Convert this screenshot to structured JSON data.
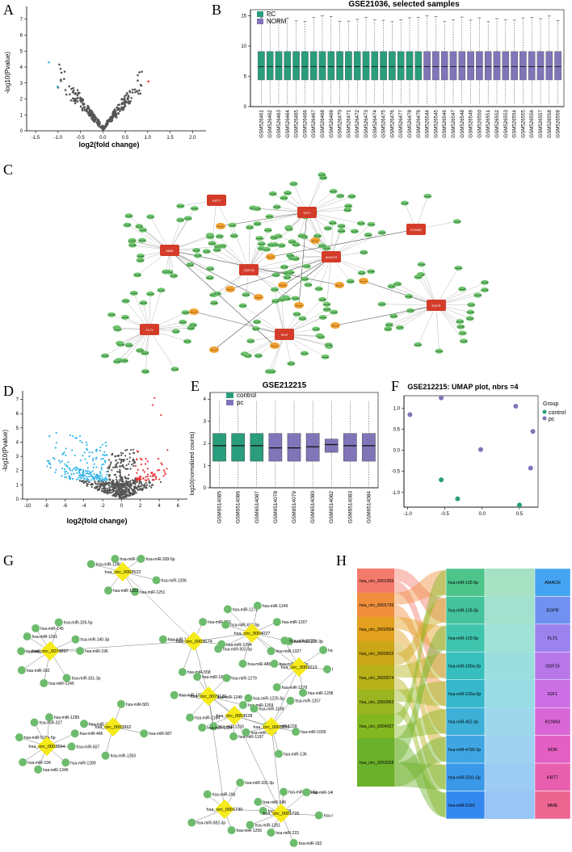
{
  "panel_labels": {
    "a": "A",
    "b": "B",
    "c": "C",
    "d": "D",
    "e": "E",
    "f": "F",
    "g": "G",
    "h": "H"
  },
  "chart_data": [
    {
      "id": "A",
      "type": "scatter",
      "title": "",
      "xlabel": "log2(fold change)",
      "ylabel": "-log10(Pvalue)",
      "xticks": [
        "-1.5",
        "-1.0",
        "-0.5",
        "0.0",
        "0.5",
        "1.0",
        "1.5",
        "2.0"
      ],
      "yticks": [
        "0",
        "1",
        "2",
        "3",
        "4",
        "5",
        "6",
        "7"
      ],
      "xlim": [
        -1.7,
        2.3
      ],
      "ylim": [
        0,
        7.8
      ],
      "colors": {
        "down": "#38b6e8",
        "ns": "#555555",
        "up": "#e8343a"
      }
    },
    {
      "id": "B",
      "type": "boxplot",
      "title": "GSE21036, selected samples",
      "legend": [
        "PC",
        "NORM"
      ],
      "colors": {
        "PC": "#2a9d7c",
        "NORM": "#8174b8"
      },
      "yticks": [
        "0",
        "5",
        "10",
        "15"
      ],
      "ylim": [
        0,
        16
      ],
      "samples": [
        "GSM526461",
        "GSM526462",
        "GSM526463",
        "GSM526464",
        "GSM526465",
        "GSM526466",
        "GSM526467",
        "GSM526468",
        "GSM526469",
        "GSM526470",
        "GSM526471",
        "GSM526472",
        "GSM526473",
        "GSM526474",
        "GSM526475",
        "GSM526476",
        "GSM526477",
        "GSM526478",
        "GSM526479",
        "GSM526544",
        "GSM526545",
        "GSM526546",
        "GSM526547",
        "GSM526548",
        "GSM526549",
        "GSM526550",
        "GSM526551",
        "GSM526552",
        "GSM526553",
        "GSM526554",
        "GSM526555",
        "GSM526556",
        "GSM526557",
        "GSM526558",
        "GSM526559"
      ],
      "group_split": 19
    },
    {
      "id": "D",
      "type": "scatter",
      "title": "",
      "xlabel": "log2(fold change)",
      "ylabel": "-log10(Pvalue)",
      "xticks": [
        "-10",
        "-8",
        "-6",
        "-4",
        "-2",
        "0",
        "2",
        "4",
        "6"
      ],
      "yticks": [
        "0",
        "1",
        "2",
        "3",
        "4",
        "5",
        "6",
        "7"
      ],
      "xlim": [
        -10.5,
        7
      ],
      "ylim": [
        0,
        7.6
      ]
    },
    {
      "id": "E",
      "type": "boxplot",
      "title": "GSE212215",
      "legend": [
        "control",
        "pc"
      ],
      "colors": {
        "control": "#2a9d7c",
        "pc": "#8174b8"
      },
      "ylabel": "log10(normalized counts)",
      "yticks": [
        "0",
        "1",
        "2",
        "3",
        "4"
      ],
      "ylim": [
        0,
        4.3
      ],
      "samples": [
        "GSM6514085",
        "GSM6514086",
        "GSM6514087",
        "GSM6514078",
        "GSM6514079",
        "GSM6514080",
        "GSM6514082",
        "GSM6514083",
        "GSM6514084"
      ],
      "groups": [
        "control",
        "control",
        "control",
        "pc",
        "pc",
        "pc",
        "pc",
        "pc",
        "pc"
      ],
      "medians": [
        1.9,
        1.9,
        1.9,
        1.8,
        1.8,
        1.85,
        1.95,
        1.9,
        1.9
      ]
    },
    {
      "id": "F",
      "type": "scatter",
      "title": "GSE212215: UMAP plot, nbrs =4",
      "legend_title": "Group",
      "legend": [
        "control",
        "pc"
      ],
      "xticks": [
        "-1.0",
        "-0.5",
        "0.0",
        "0.5"
      ],
      "yticks": [
        "-1.0",
        "-0.5",
        "0.0",
        "0.5",
        "1.0"
      ],
      "xlim": [
        -1.05,
        0.75
      ],
      "ylim": [
        -1.35,
        1.3
      ],
      "points": [
        {
          "x": -0.97,
          "y": 0.85,
          "g": "pc"
        },
        {
          "x": -0.55,
          "y": 1.25,
          "g": "pc"
        },
        {
          "x": -0.55,
          "y": -0.7,
          "g": "control"
        },
        {
          "x": -0.33,
          "y": -1.15,
          "g": "control"
        },
        {
          "x": -0.02,
          "y": 0.02,
          "g": "pc"
        },
        {
          "x": 0.45,
          "y": 1.05,
          "g": "pc"
        },
        {
          "x": 0.68,
          "y": 0.45,
          "g": "pc"
        },
        {
          "x": 0.65,
          "y": -0.42,
          "g": "pc"
        },
        {
          "x": 0.5,
          "y": -1.3,
          "g": "control"
        }
      ]
    },
    {
      "id": "H",
      "type": "sankey",
      "circ": [
        "hsa_circ_0001955",
        "hsa_circ_0001726",
        "hsa_circ_0002554",
        "hsa_circ_0003522",
        "hsa_circ_0003574",
        "hsa_circ_0003962",
        "hsa_circ_0004027",
        "hsa_circ_0053028"
      ],
      "mir": [
        "hsa-miR-125-5p",
        "hsa-miR-128-3p",
        "hsa-miR-129-5p",
        "hsa-miR-190a-3p",
        "hsa-miR-216a-3p",
        "hsa-miR-452-3p",
        "hsa-miR-4795-3p",
        "hsa-miR-5011-5p",
        "hsa-miR-5193"
      ],
      "gene": [
        "AMACR",
        "EGFR",
        "FLT1",
        "GDF15",
        "IGF1",
        "KCNN3",
        "KDR",
        "KRT7",
        "MME"
      ]
    }
  ],
  "network_c": {
    "hubs": [
      "MME",
      "KRT7",
      "IGF1",
      "AMACR",
      "GDF15",
      "FLT1",
      "KDR",
      "EGFR",
      "KCNN3"
    ],
    "circ_label": "hsa_circ",
    "mir_label": "hsa-miR"
  },
  "network_g": {
    "circ": [
      "hsa_circ_0079897",
      "hsa_circ_0003522",
      "hsa_circ_0003574",
      "hsa_circ_0004027",
      "hsa_circ_0079136",
      "hsa_circ_0053028",
      "hsa_circ_0001555",
      "hsa_circ_0003213",
      "hsa_circ_0002554",
      "hsa_circ_0003962",
      "hsa_circ_0001730",
      "hsa_circ_0001726"
    ],
    "mir": [
      "hsa-miR-196",
      "hsa-miR-331-3p",
      "hsa-miR-1245",
      "hsa-miR-182",
      "hsa-miR-223",
      "hsa-miR-1261",
      "hsa-miR-145",
      "hsa-miR-326-5p",
      "hsa-miR-140-3p",
      "hsa-miR-1206",
      "hsa-miR-1251",
      "hsa-miR-1322",
      "hsa-miR-1265",
      "hsa-miR-326",
      "hsa-miR-328-5p",
      "hsa-miR-1294",
      "hsa-miR-558",
      "hsa-miR-1200",
      "hsa-miR-383",
      "hsa-miR-338-3p",
      "hsa-miR-1327",
      "hsa-miR-486-3p",
      "hsa-miR-502-5p",
      "hsa-miR-615-5p",
      "hsa-miR-1272",
      "hsa-miR-1249",
      "hsa-miR-1207",
      "hsa-miR-1269",
      "hsa-miR-1233",
      "hsa-miR-1184",
      "hsa-miR-1258",
      "hsa-miR-189-3p",
      "hsa-miR-1279",
      "hsa-miR-1229",
      "hsa-miR-1197",
      "hsa-miR-1304",
      "hsa-miR-1248",
      "hsa-miR-1225-5p",
      "hsa-miR-1005",
      "hsa-miR-136",
      "hsa-miR-1270",
      "hsa-miR-1189",
      "hsa-miR-1257",
      "hsa-miR-1381",
      "hsa-miR-1208",
      "hsa-miR-1278",
      "hsa-miR-327-5p",
      "hsa-miR-1227",
      "hsa-miR-1228",
      "hsa-miR-607",
      "hsa-miR-1289",
      "hsa-miR-1346",
      "hsa-miR-194",
      "hsa-miR-518a-5p",
      "hsa-miR-327",
      "hsa-miR-1285",
      "hsa-miR-496",
      "hsa-miR-587",
      "hsa-miR-1283",
      "hsa-miR-338-5p",
      "hsa-miR-581",
      "hsa-miR-609",
      "hsa-miR-1256",
      "hsa-miR-582-3p"
    ]
  }
}
